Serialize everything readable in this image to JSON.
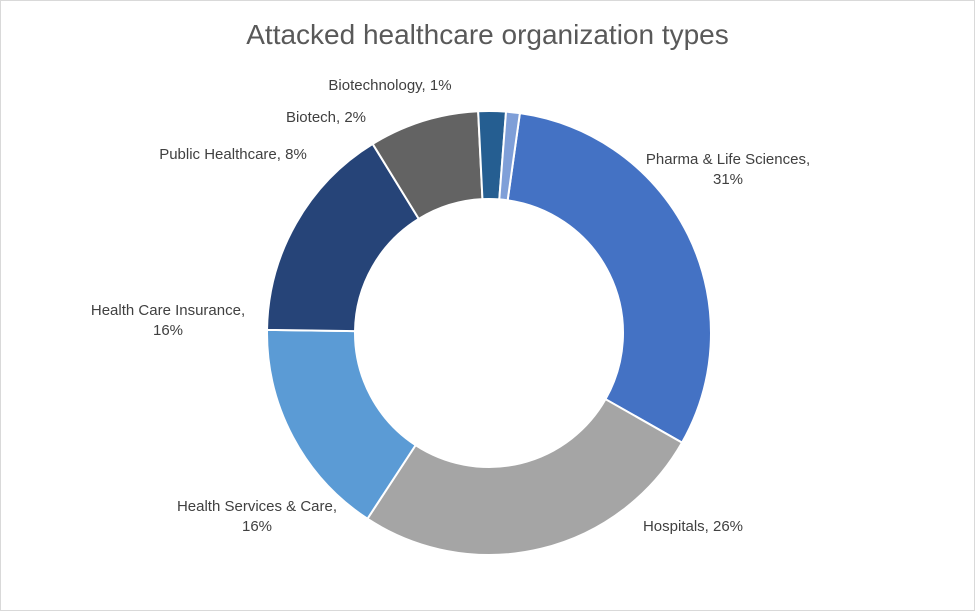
{
  "chart_data": {
    "type": "pie",
    "variant": "donut",
    "title": "Attacked healthcare organization types",
    "start_angle_deg": 8,
    "direction": "clockwise",
    "unit": "%",
    "slices": [
      {
        "name": "Pharma & Life Sciences",
        "value": 31,
        "label_lines": [
          "Pharma & Life Sciences,",
          "31%"
        ],
        "color": "#4472C4"
      },
      {
        "name": "Hospitals",
        "value": 26,
        "label_lines": [
          "Hospitals, 26%"
        ],
        "color": "#A5A5A5"
      },
      {
        "name": "Health Services & Care",
        "value": 16,
        "label_lines": [
          "Health Services & Care,",
          "16%"
        ],
        "color": "#5B9BD5"
      },
      {
        "name": "Health Care Insurance",
        "value": 16,
        "label_lines": [
          "Health Care Insurance,",
          "16%"
        ],
        "color": "#264478"
      },
      {
        "name": "Public Healthcare",
        "value": 8,
        "label_lines": [
          "Public Healthcare, 8%"
        ],
        "color": "#636363"
      },
      {
        "name": "Biotech",
        "value": 2,
        "label_lines": [
          "Biotech, 2%"
        ],
        "color": "#255E91"
      },
      {
        "name": "Biotechnology",
        "value": 1,
        "label_lines": [
          "Biotechnology, 1%"
        ],
        "color": "#7F9FD8"
      }
    ]
  }
}
